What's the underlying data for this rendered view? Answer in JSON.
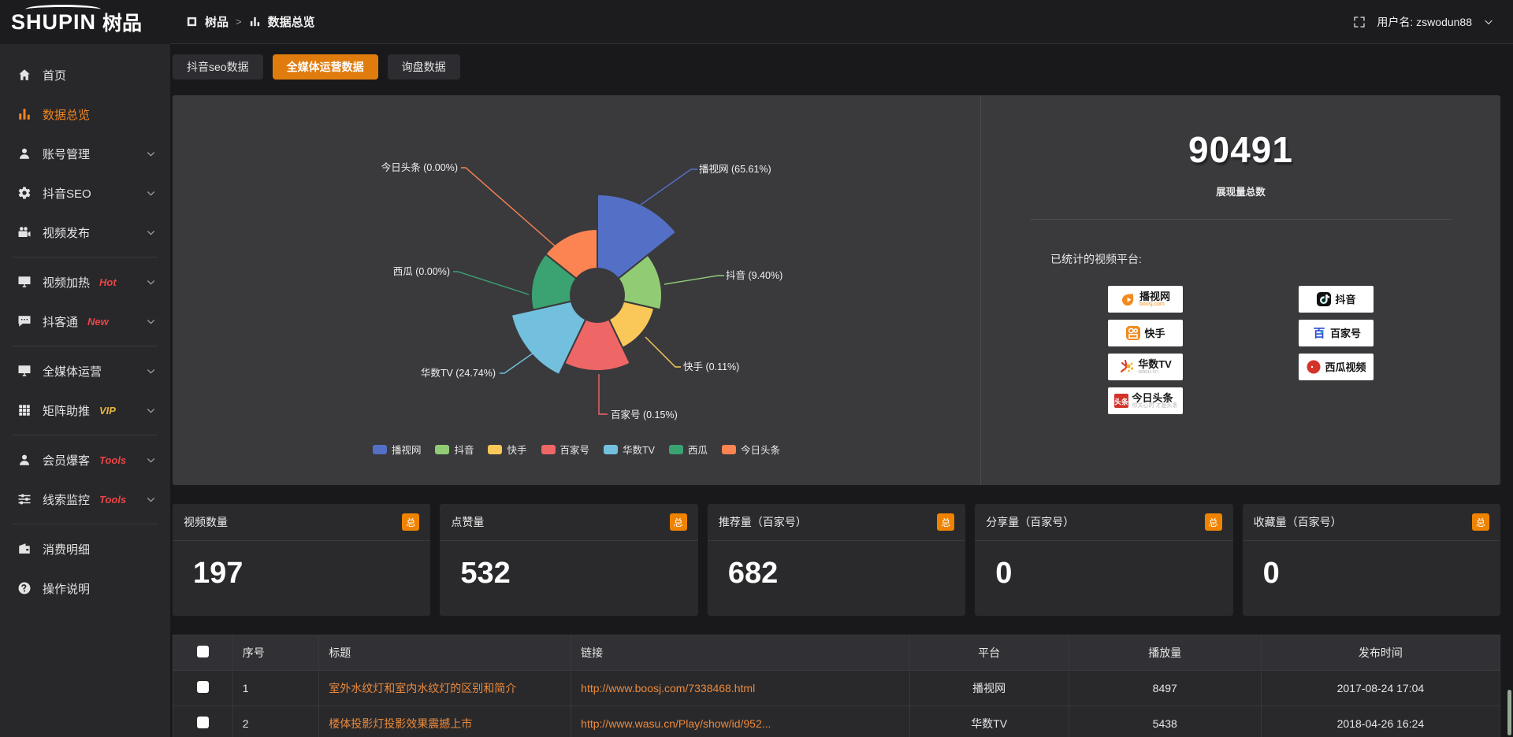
{
  "logo": {
    "latin": "SHUPIN",
    "cn": "树品"
  },
  "topbar": {
    "breadcrumb_root": "树品",
    "breadcrumb_sep": ">",
    "breadcrumb_current": "数据总览",
    "username": "用户名: zswodun88"
  },
  "sidebar": {
    "items": [
      {
        "label": "首页",
        "icon": "home",
        "active": false,
        "chevron": false,
        "badge": "",
        "badge_color": "",
        "divider_after": false
      },
      {
        "label": "数据总览",
        "icon": "chart",
        "active": true,
        "chevron": false,
        "badge": "",
        "badge_color": "",
        "divider_after": false
      },
      {
        "label": "账号管理",
        "icon": "user",
        "active": false,
        "chevron": true,
        "badge": "",
        "badge_color": "",
        "divider_after": false
      },
      {
        "label": "抖音SEO",
        "icon": "gear",
        "active": false,
        "chevron": true,
        "badge": "",
        "badge_color": "",
        "divider_after": false
      },
      {
        "label": "视频发布",
        "icon": "video",
        "active": false,
        "chevron": true,
        "badge": "",
        "badge_color": "",
        "divider_after": true
      },
      {
        "label": "视频加热",
        "icon": "heat",
        "active": false,
        "chevron": true,
        "badge": "Hot",
        "badge_color": "#e84545",
        "divider_after": false
      },
      {
        "label": "抖客通",
        "icon": "chat",
        "active": false,
        "chevron": true,
        "badge": "New",
        "badge_color": "#e84545",
        "divider_after": true
      },
      {
        "label": "全媒体运营",
        "icon": "monitor",
        "active": false,
        "chevron": true,
        "badge": "",
        "badge_color": "",
        "divider_after": false
      },
      {
        "label": "矩阵助推",
        "icon": "grid",
        "active": false,
        "chevron": true,
        "badge": "VIP",
        "badge_color": "#e9b43c",
        "divider_after": true
      },
      {
        "label": "会员爆客",
        "icon": "user",
        "active": false,
        "chevron": true,
        "badge": "Tools",
        "badge_color": "#e84545",
        "divider_after": false
      },
      {
        "label": "线索监控",
        "icon": "sliders",
        "active": false,
        "chevron": true,
        "badge": "Tools",
        "badge_color": "#e84545",
        "divider_after": true
      },
      {
        "label": "消费明细",
        "icon": "wallet",
        "active": false,
        "chevron": false,
        "badge": "",
        "badge_color": "",
        "divider_after": false
      },
      {
        "label": "操作说明",
        "icon": "help",
        "active": false,
        "chevron": false,
        "badge": "",
        "badge_color": "",
        "divider_after": false
      }
    ]
  },
  "tabs": [
    {
      "label": "抖音seo数据",
      "active": false
    },
    {
      "label": "全媒体运营数据",
      "active": true
    },
    {
      "label": "询盘数据",
      "active": false
    }
  ],
  "chart_data": {
    "type": "pie",
    "subtype": "nightingale-rose-donut",
    "categories": [
      "播视网",
      "抖音",
      "快手",
      "百家号",
      "华数TV",
      "西瓜",
      "今日头条"
    ],
    "values": [
      65.61,
      9.4,
      0.11,
      0.15,
      24.74,
      0.0,
      0.0
    ],
    "value_labels": [
      "65.61%",
      "9.40%",
      "0.11%",
      "0.15%",
      "24.74%",
      "0.00%",
      "0.00%"
    ],
    "colors": [
      "#5470c6",
      "#91cc75",
      "#fac858",
      "#ee6666",
      "#73c0de",
      "#3ba272",
      "#fc8452"
    ],
    "visual_radii": [
      128,
      82,
      74,
      96,
      112,
      84,
      84
    ],
    "inner_radius": 34,
    "title": "",
    "legend_position": "bottom",
    "legend": [
      "播视网",
      "抖音",
      "快手",
      "百家号",
      "华数TV",
      "西瓜",
      "今日头条"
    ]
  },
  "summary": {
    "total_value": "90491",
    "total_label": "展现量总数",
    "platforms_title": "已统计的视频平台:",
    "platforms": [
      {
        "name": "播视网",
        "sub": "boosj.com",
        "sub_color": "#f28a1d",
        "mark": "boosj"
      },
      {
        "name": "快手",
        "sub": "",
        "sub_color": "",
        "mark": "kuaishou"
      },
      {
        "name": "华数TV",
        "sub": "wasu.cn",
        "sub_color": "#b5b5b5",
        "mark": "wasu"
      },
      {
        "name": "今日头条",
        "sub": "你关心的 才是头条",
        "sub_color": "#b5b5b5",
        "mark": "toutiao"
      },
      {
        "name": "抖音",
        "sub": "",
        "sub_color": "",
        "mark": "douyin"
      },
      {
        "name": "百家号",
        "sub": "",
        "sub_color": "",
        "mark": "baijia"
      },
      {
        "name": "西瓜视频",
        "sub": "",
        "sub_color": "",
        "mark": "xigua"
      }
    ]
  },
  "stat_cards": [
    {
      "label": "视频数量",
      "badge": "总",
      "value": "197"
    },
    {
      "label": "点赞量",
      "badge": "总",
      "value": "532"
    },
    {
      "label": "推荐量（百家号）",
      "badge": "总",
      "value": "682"
    },
    {
      "label": "分享量（百家号）",
      "badge": "总",
      "value": "0"
    },
    {
      "label": "收藏量（百家号）",
      "badge": "总",
      "value": "0"
    }
  ],
  "table": {
    "headers": [
      "序号",
      "标题",
      "链接",
      "平台",
      "播放量",
      "发布时间"
    ],
    "rows": [
      {
        "index": "1",
        "title": "室外水纹灯和室内水纹灯的区别和简介",
        "link": "http://www.boosj.com/7338468.html",
        "platform": "播视网",
        "plays": "8497",
        "published": "2017-08-24 17:04"
      },
      {
        "index": "2",
        "title": "楼体投影灯投影效果震撼上市",
        "link": "http://www.wasu.cn/Play/show/id/952...",
        "platform": "华数TV",
        "plays": "5438",
        "published": "2018-04-26 16:24"
      }
    ]
  },
  "accent_color": "#e8820e",
  "badge_total_color": "#ef8300",
  "link_color": "#ec8a3c"
}
